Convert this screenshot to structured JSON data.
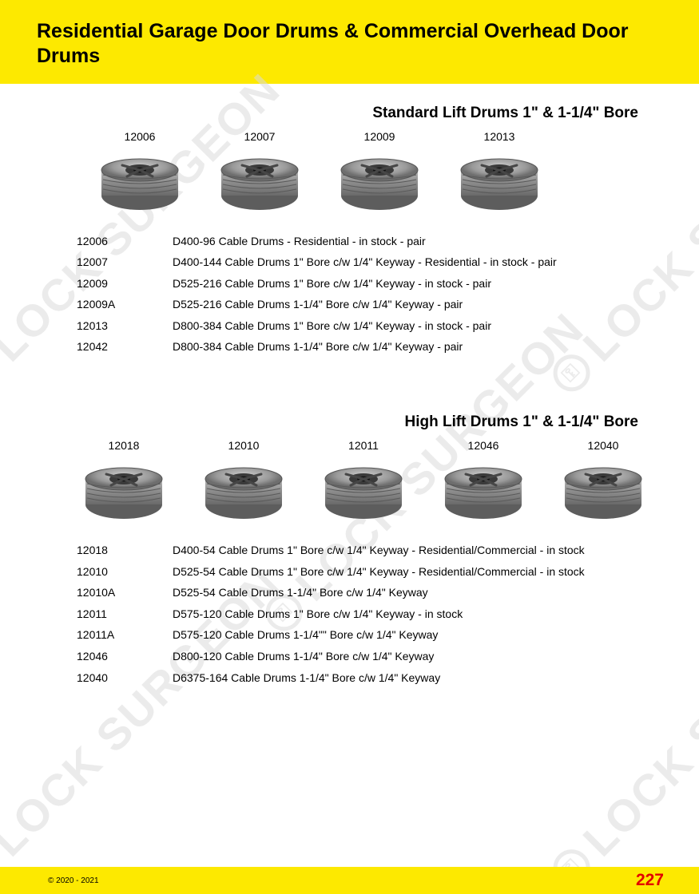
{
  "colors": {
    "header_bg": "#fde900",
    "footer_bg": "#fde900",
    "page_num": "#e20000",
    "text": "#000000",
    "watermark": "#dcdcdc"
  },
  "header": {
    "title": "Residential Garage Door Drums & Commercial Overhead Door Drums"
  },
  "watermark_text": "LOCK SURGEON",
  "section1": {
    "title": "Standard Lift Drums 1\" & 1-1/4\" Bore",
    "images": [
      {
        "code": "12006"
      },
      {
        "code": "12007"
      },
      {
        "code": "12009"
      },
      {
        "code": "12013"
      }
    ],
    "specs": [
      {
        "code": "12006",
        "desc": "D400-96 Cable Drums - Residential - in stock - pair"
      },
      {
        "code": "12007",
        "desc": "D400-144 Cable Drums 1\" Bore c/w 1/4\" Keyway - Residential - in stock - pair"
      },
      {
        "code": "12009",
        "desc": "D525-216 Cable Drums 1\" Bore c/w 1/4\" Keyway - in stock - pair"
      },
      {
        "code": "12009A",
        "desc": "D525-216 Cable Drums 1-1/4\" Bore c/w 1/4\" Keyway - pair"
      },
      {
        "code": "12013",
        "desc": "D800-384 Cable Drums 1\" Bore c/w 1/4\" Keyway - in stock - pair"
      },
      {
        "code": "12042",
        "desc": "D800-384 Cable Drums 1-1/4\" Bore c/w 1/4\" Keyway  - pair"
      }
    ]
  },
  "section2": {
    "title": "High Lift Drums 1\" & 1-1/4\" Bore",
    "images": [
      {
        "code": "12018"
      },
      {
        "code": "12010"
      },
      {
        "code": "12011"
      },
      {
        "code": "12046"
      },
      {
        "code": "12040"
      }
    ],
    "specs": [
      {
        "code": "12018",
        "desc": "D400-54 Cable Drums 1\" Bore c/w 1/4\" Keyway - Residential/Commercial - in stock"
      },
      {
        "code": "12010",
        "desc": "D525-54 Cable Drums 1\" Bore c/w 1/4\" Keyway - Residential/Commercial - in stock"
      },
      {
        "code": "12010A",
        "desc": "D525-54 Cable Drums 1-1/4\" Bore c/w 1/4\" Keyway"
      },
      {
        "code": "12011",
        "desc": "D575-120 Cable Drums 1\" Bore c/w 1/4\" Keyway - in stock"
      },
      {
        "code": "12011A",
        "desc": "D575-120 Cable Drums 1-1/4\"\" Bore c/w 1/4\" Keyway"
      },
      {
        "code": "12046",
        "desc": "D800-120 Cable Drums 1-1/4\" Bore c/w 1/4\" Keyway"
      },
      {
        "code": "12040",
        "desc": "D6375-164 Cable Drums 1-1/4\" Bore c/w 1/4\" Keyway"
      }
    ]
  },
  "footer": {
    "copyright": "© 2020 - 2021",
    "page": "227"
  }
}
